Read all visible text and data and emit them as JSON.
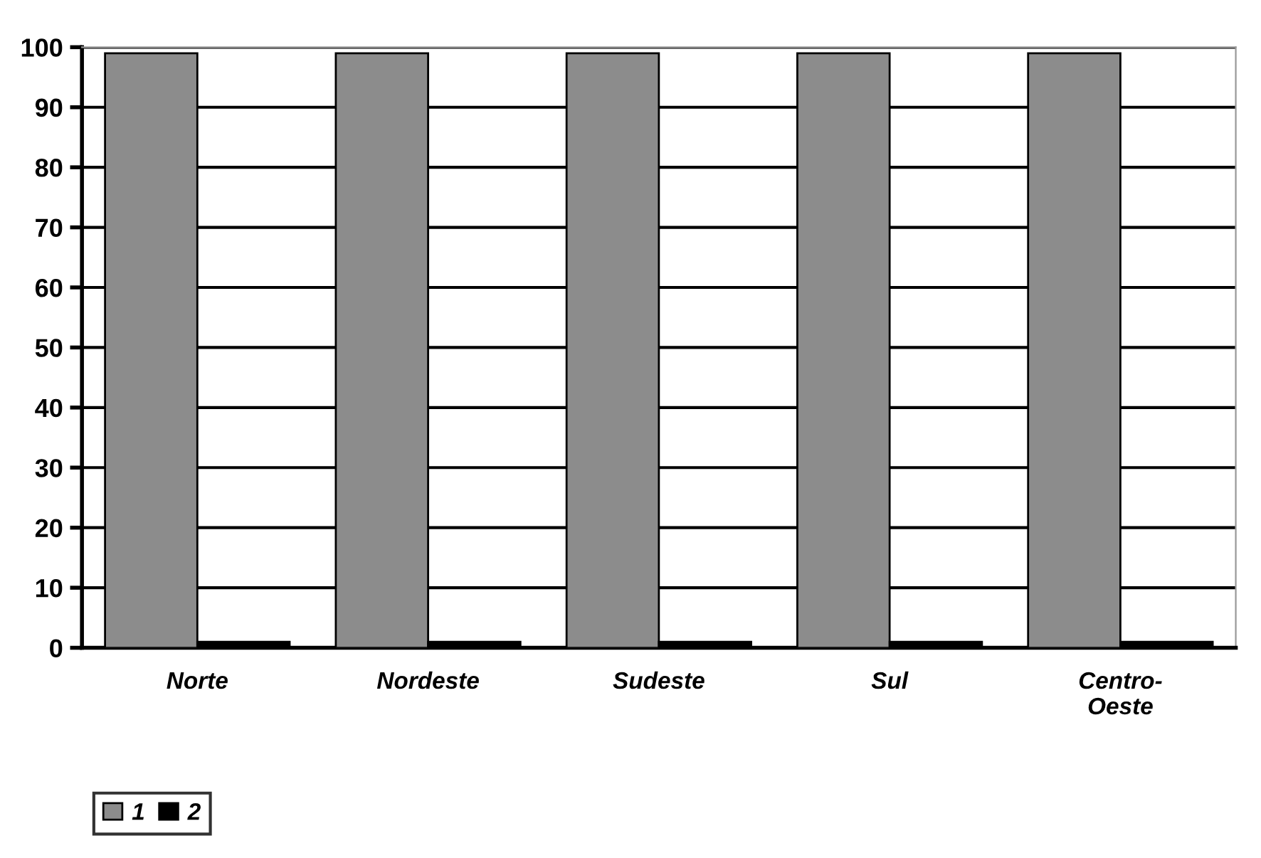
{
  "chart_data": {
    "type": "bar",
    "categories": [
      "Norte",
      "Nordeste",
      "Sudeste",
      "Sul",
      "Centro-Oeste"
    ],
    "series": [
      {
        "name": "1",
        "color": "#8c8c8c",
        "values": [
          99,
          99,
          99,
          99,
          99
        ]
      },
      {
        "name": "2",
        "color": "#000000",
        "values": [
          1,
          1,
          1,
          1,
          1
        ]
      }
    ],
    "ylim": [
      0,
      100
    ],
    "yticks": [
      0,
      10,
      20,
      30,
      40,
      50,
      60,
      70,
      80,
      90,
      100
    ],
    "grid": "y",
    "legend": "bottom left"
  }
}
